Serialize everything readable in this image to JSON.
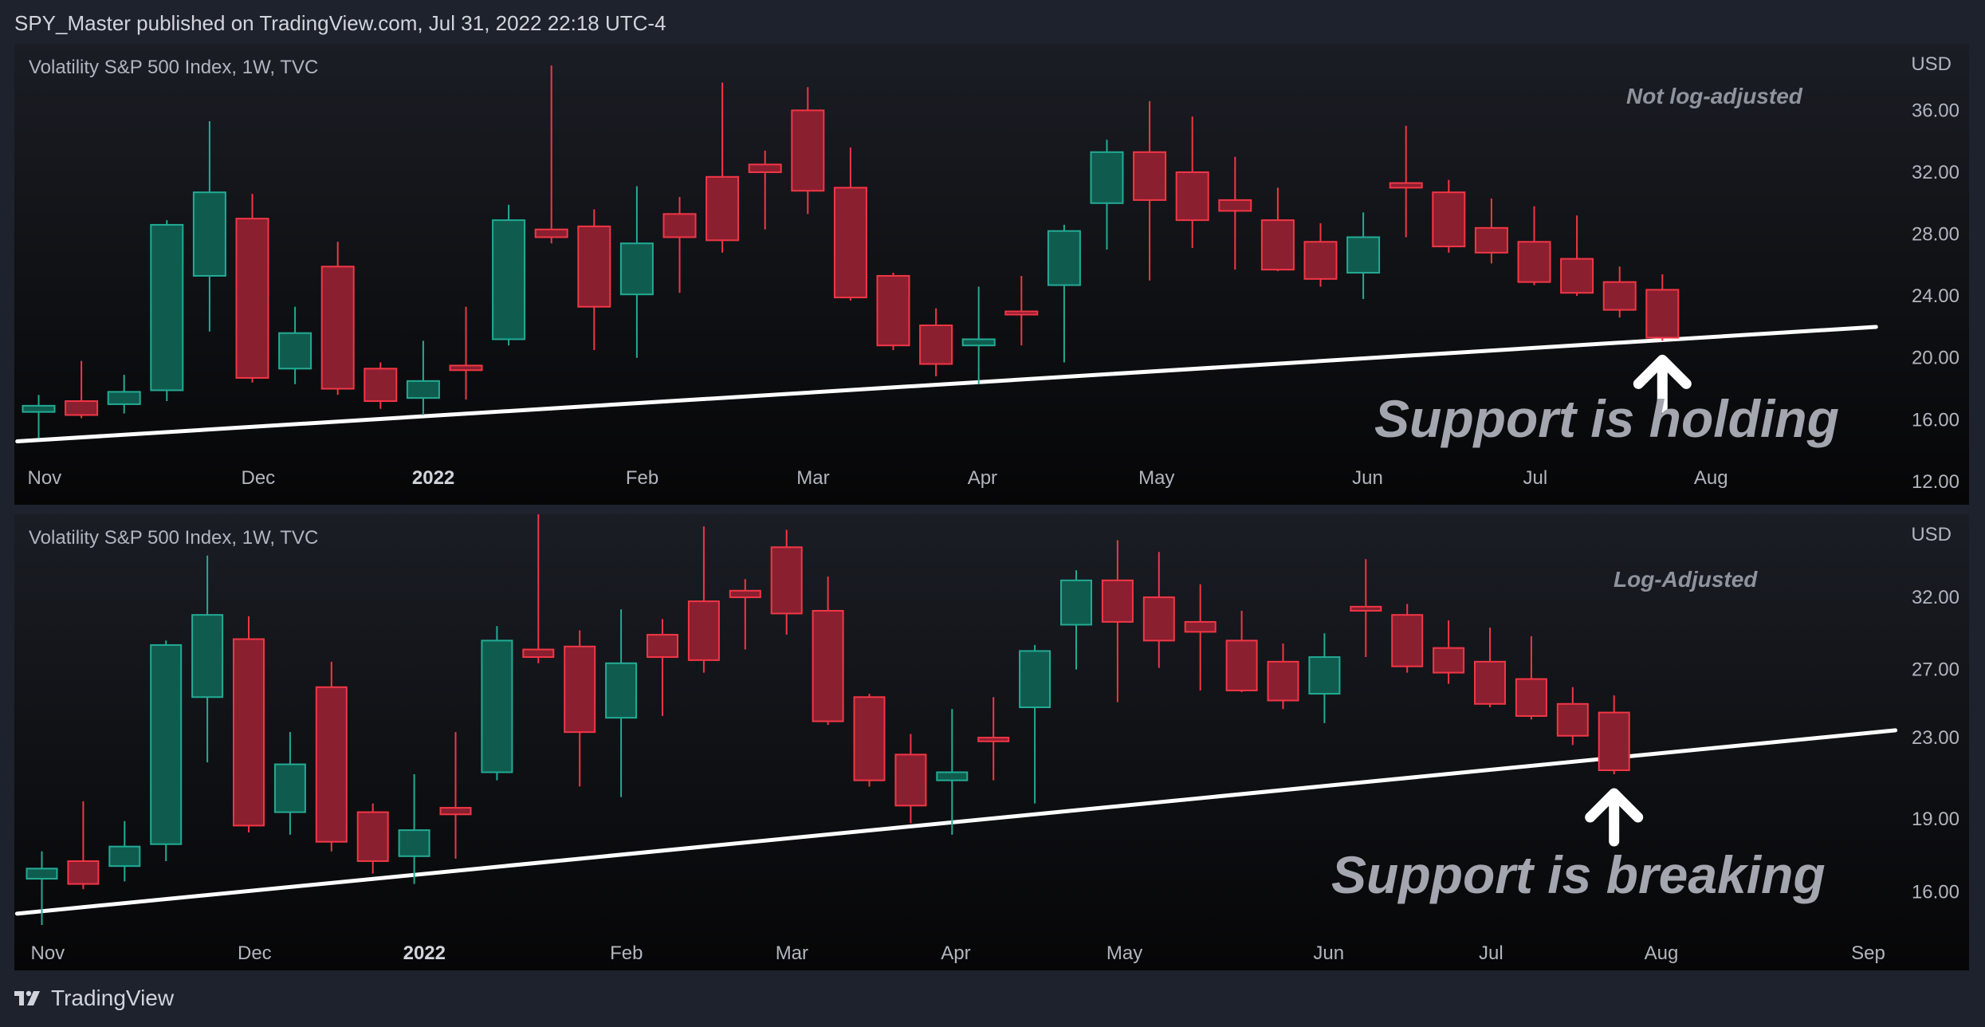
{
  "header": {
    "publisher_line": "SPY_Master published on TradingView.com, Jul 31, 2022 22:18 UTC-4"
  },
  "footer": {
    "brand": "TradingView"
  },
  "colors": {
    "up": "#0f5c4f",
    "up_border": "#22ab94",
    "down": "#8a1f30",
    "down_border": "#f23645",
    "support_line": "#ffffff",
    "background": "#1e222d"
  },
  "panels": [
    {
      "title": "Volatility S&P 500 Index, 1W, TVC",
      "currency": "USD",
      "note": "Not log-adjusted",
      "annotation": "Support is holding",
      "icon": "up-arrow-icon"
    },
    {
      "title": "Volatility S&P 500 Index, 1W, TVC",
      "currency": "USD",
      "note": "Log-Adjusted",
      "annotation": "Support is breaking",
      "icon": "up-arrow-icon"
    }
  ],
  "chart_data": [
    {
      "type": "candlestick",
      "title": "Volatility S&P 500 Index, 1W, TVC",
      "scale": "linear",
      "ylabel": "USD",
      "ylim": [
        10.5,
        40.3
      ],
      "y_ticks": [
        "36.00",
        "32.00",
        "28.00",
        "24.00",
        "20.00",
        "16.00",
        "12.00"
      ],
      "x_ticks": [
        "Nov",
        "Dec",
        "2022",
        "Feb",
        "Mar",
        "Apr",
        "May",
        "Jun",
        "Jul",
        "Aug"
      ],
      "x_tick_weeks": [
        0,
        5,
        9,
        14,
        18,
        22,
        26,
        31,
        35,
        39
      ],
      "trendline": {
        "start": [
          -0.5,
          14.6
        ],
        "end": [
          43,
          22.0
        ]
      },
      "arrow_week": 38
    },
    {
      "type": "candlestick",
      "title": "Volatility S&P 500 Index, 1W, TVC",
      "scale": "log",
      "ylabel": "USD",
      "ylim": [
        13.3,
        38.9
      ],
      "y_ticks": [
        "32.00",
        "27.00",
        "23.00",
        "19.00",
        "16.00"
      ],
      "x_ticks": [
        "Nov",
        "Dec",
        "2022",
        "Feb",
        "Mar",
        "Apr",
        "May",
        "Jun",
        "Jul",
        "Aug",
        "Sep"
      ],
      "x_tick_weeks": [
        0,
        5,
        9,
        14,
        18,
        22,
        26,
        31,
        35,
        39,
        44
      ],
      "trendline": {
        "start": [
          -0.6,
          15.2
        ],
        "end": [
          44.8,
          23.4
        ]
      },
      "arrow_week": 38
    }
  ],
  "candles": [
    {
      "week": 0,
      "o": 16.5,
      "h": 17.6,
      "l": 14.8,
      "c": 16.9
    },
    {
      "week": 1,
      "o": 17.2,
      "h": 19.8,
      "l": 16.1,
      "c": 16.3
    },
    {
      "week": 2,
      "o": 17.0,
      "h": 18.9,
      "l": 16.4,
      "c": 17.8
    },
    {
      "week": 3,
      "o": 17.9,
      "h": 28.9,
      "l": 17.2,
      "c": 28.6
    },
    {
      "week": 4,
      "o": 25.3,
      "h": 35.3,
      "l": 21.7,
      "c": 30.7
    },
    {
      "week": 5,
      "o": 29.0,
      "h": 30.6,
      "l": 18.4,
      "c": 18.7
    },
    {
      "week": 6,
      "o": 19.3,
      "h": 23.3,
      "l": 18.3,
      "c": 21.6
    },
    {
      "week": 7,
      "o": 25.9,
      "h": 27.5,
      "l": 17.6,
      "c": 18.0
    },
    {
      "week": 8,
      "o": 19.3,
      "h": 19.7,
      "l": 16.7,
      "c": 17.2
    },
    {
      "week": 9,
      "o": 17.4,
      "h": 21.1,
      "l": 16.3,
      "c": 18.5
    },
    {
      "week": 10,
      "o": 19.5,
      "h": 23.3,
      "l": 17.3,
      "c": 19.2
    },
    {
      "week": 11,
      "o": 21.2,
      "h": 29.9,
      "l": 20.8,
      "c": 28.9
    },
    {
      "week": 12,
      "o": 28.3,
      "h": 38.9,
      "l": 27.4,
      "c": 27.8
    },
    {
      "week": 13,
      "o": 28.5,
      "h": 29.6,
      "l": 20.5,
      "c": 23.3
    },
    {
      "week": 14,
      "o": 24.1,
      "h": 31.1,
      "l": 20.0,
      "c": 27.4
    },
    {
      "week": 15,
      "o": 29.3,
      "h": 30.4,
      "l": 24.2,
      "c": 27.8
    },
    {
      "week": 16,
      "o": 31.7,
      "h": 37.8,
      "l": 26.8,
      "c": 27.6
    },
    {
      "week": 17,
      "o": 32.5,
      "h": 33.4,
      "l": 28.3,
      "c": 32.0
    },
    {
      "week": 18,
      "o": 36.0,
      "h": 37.5,
      "l": 29.3,
      "c": 30.8
    },
    {
      "week": 19,
      "o": 31.0,
      "h": 33.6,
      "l": 23.7,
      "c": 23.9
    },
    {
      "week": 20,
      "o": 25.3,
      "h": 25.5,
      "l": 20.5,
      "c": 20.8
    },
    {
      "week": 21,
      "o": 22.1,
      "h": 23.2,
      "l": 18.8,
      "c": 19.6
    },
    {
      "week": 22,
      "o": 20.8,
      "h": 24.6,
      "l": 18.3,
      "c": 21.2
    },
    {
      "week": 23,
      "o": 23.0,
      "h": 25.3,
      "l": 20.8,
      "c": 22.8
    },
    {
      "week": 24,
      "o": 24.7,
      "h": 28.6,
      "l": 19.7,
      "c": 28.2
    },
    {
      "week": 25,
      "o": 30.0,
      "h": 34.1,
      "l": 27.0,
      "c": 33.3
    },
    {
      "week": 26,
      "o": 33.3,
      "h": 36.6,
      "l": 25.0,
      "c": 30.2
    },
    {
      "week": 27,
      "o": 32.0,
      "h": 35.6,
      "l": 27.1,
      "c": 28.9
    },
    {
      "week": 28,
      "o": 30.2,
      "h": 33.0,
      "l": 25.7,
      "c": 29.5
    },
    {
      "week": 29,
      "o": 28.9,
      "h": 31.0,
      "l": 25.6,
      "c": 25.7
    },
    {
      "week": 30,
      "o": 27.5,
      "h": 28.7,
      "l": 24.6,
      "c": 25.1
    },
    {
      "week": 31,
      "o": 25.5,
      "h": 29.4,
      "l": 23.8,
      "c": 27.8
    },
    {
      "week": 32,
      "o": 31.3,
      "h": 35.0,
      "l": 27.8,
      "c": 31.0
    },
    {
      "week": 33,
      "o": 30.7,
      "h": 31.5,
      "l": 26.8,
      "c": 27.2
    },
    {
      "week": 34,
      "o": 28.4,
      "h": 30.3,
      "l": 26.1,
      "c": 26.8
    },
    {
      "week": 35,
      "o": 27.5,
      "h": 29.8,
      "l": 24.7,
      "c": 24.9
    },
    {
      "week": 36,
      "o": 26.4,
      "h": 29.2,
      "l": 24.0,
      "c": 24.2
    },
    {
      "week": 37,
      "o": 24.9,
      "h": 25.9,
      "l": 22.6,
      "c": 23.1
    },
    {
      "week": 38,
      "o": 24.4,
      "h": 25.4,
      "l": 21.1,
      "c": 21.3
    }
  ]
}
